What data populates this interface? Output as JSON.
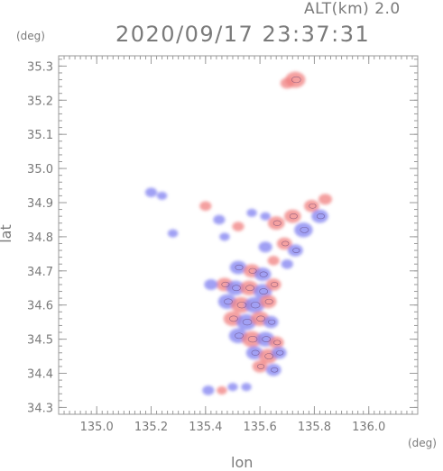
{
  "header": {
    "alt_label": "ALT(km) 2.0",
    "timestamp": "2020/09/17 23:37:31"
  },
  "chart_data": {
    "type": "heatmap",
    "title": "2020/09/17 23:37:31",
    "xlabel": "lon",
    "ylabel": "lat",
    "xunit": "(deg)",
    "yunit": "(deg)",
    "xlim": [
      134.86,
      136.18
    ],
    "ylim": [
      34.28,
      35.33
    ],
    "xticks": [
      135.0,
      135.2,
      135.4,
      135.6,
      135.8,
      136.0
    ],
    "xtick_labels": [
      "135.0",
      "135.2",
      "135.4",
      "135.6",
      "135.8",
      "136.0"
    ],
    "yticks": [
      34.3,
      34.4,
      34.5,
      34.6,
      34.7,
      34.8,
      34.9,
      35.0,
      35.1,
      35.2,
      35.3
    ],
    "ytick_labels": [
      "34.3",
      "34.4",
      "34.5",
      "34.6",
      "34.7",
      "34.8",
      "34.9",
      "35.0",
      "35.1",
      "35.2",
      "35.3"
    ],
    "grid": false,
    "colors": {
      "positive": "#f08080",
      "negative": "#8080f0",
      "outline": "#5a3a6a"
    },
    "patches": [
      {
        "lon": 135.73,
        "lat": 35.26,
        "sign": "positive",
        "size": 0.9
      },
      {
        "lon": 135.7,
        "lat": 35.25,
        "sign": "positive",
        "size": 0.5
      },
      {
        "lon": 135.2,
        "lat": 34.93,
        "sign": "negative",
        "size": 0.4
      },
      {
        "lon": 135.24,
        "lat": 34.92,
        "sign": "negative",
        "size": 0.3
      },
      {
        "lon": 135.4,
        "lat": 34.89,
        "sign": "positive",
        "size": 0.4
      },
      {
        "lon": 135.45,
        "lat": 34.85,
        "sign": "negative",
        "size": 0.4
      },
      {
        "lon": 135.52,
        "lat": 34.83,
        "sign": "positive",
        "size": 0.4
      },
      {
        "lon": 135.47,
        "lat": 34.8,
        "sign": "negative",
        "size": 0.3
      },
      {
        "lon": 135.57,
        "lat": 34.87,
        "sign": "negative",
        "size": 0.3
      },
      {
        "lon": 135.62,
        "lat": 34.86,
        "sign": "negative",
        "size": 0.3
      },
      {
        "lon": 135.28,
        "lat": 34.81,
        "sign": "negative",
        "size": 0.3
      },
      {
        "lon": 135.66,
        "lat": 34.84,
        "sign": "positive",
        "size": 0.7
      },
      {
        "lon": 135.72,
        "lat": 34.86,
        "sign": "positive",
        "size": 0.7
      },
      {
        "lon": 135.76,
        "lat": 34.82,
        "sign": "negative",
        "size": 0.8
      },
      {
        "lon": 135.79,
        "lat": 34.89,
        "sign": "positive",
        "size": 0.6
      },
      {
        "lon": 135.82,
        "lat": 34.86,
        "sign": "negative",
        "size": 0.7
      },
      {
        "lon": 135.84,
        "lat": 34.91,
        "sign": "positive",
        "size": 0.5
      },
      {
        "lon": 135.69,
        "lat": 34.78,
        "sign": "positive",
        "size": 0.6
      },
      {
        "lon": 135.73,
        "lat": 34.76,
        "sign": "negative",
        "size": 0.6
      },
      {
        "lon": 135.7,
        "lat": 34.72,
        "sign": "negative",
        "size": 0.4
      },
      {
        "lon": 135.62,
        "lat": 34.77,
        "sign": "negative",
        "size": 0.5
      },
      {
        "lon": 135.65,
        "lat": 34.73,
        "sign": "positive",
        "size": 0.4
      },
      {
        "lon": 135.52,
        "lat": 34.71,
        "sign": "negative",
        "size": 0.7
      },
      {
        "lon": 135.57,
        "lat": 34.7,
        "sign": "positive",
        "size": 0.7
      },
      {
        "lon": 135.61,
        "lat": 34.69,
        "sign": "negative",
        "size": 0.7
      },
      {
        "lon": 135.47,
        "lat": 34.66,
        "sign": "positive",
        "size": 0.7
      },
      {
        "lon": 135.51,
        "lat": 34.65,
        "sign": "negative",
        "size": 0.8
      },
      {
        "lon": 135.56,
        "lat": 34.65,
        "sign": "positive",
        "size": 0.8
      },
      {
        "lon": 135.61,
        "lat": 34.64,
        "sign": "negative",
        "size": 0.8
      },
      {
        "lon": 135.65,
        "lat": 34.66,
        "sign": "positive",
        "size": 0.6
      },
      {
        "lon": 135.42,
        "lat": 34.66,
        "sign": "negative",
        "size": 0.5
      },
      {
        "lon": 135.48,
        "lat": 34.61,
        "sign": "negative",
        "size": 0.8
      },
      {
        "lon": 135.53,
        "lat": 34.6,
        "sign": "positive",
        "size": 0.9
      },
      {
        "lon": 135.58,
        "lat": 34.6,
        "sign": "negative",
        "size": 0.9
      },
      {
        "lon": 135.63,
        "lat": 34.61,
        "sign": "positive",
        "size": 0.7
      },
      {
        "lon": 135.5,
        "lat": 34.56,
        "sign": "positive",
        "size": 0.8
      },
      {
        "lon": 135.55,
        "lat": 34.55,
        "sign": "negative",
        "size": 0.9
      },
      {
        "lon": 135.6,
        "lat": 34.56,
        "sign": "positive",
        "size": 0.8
      },
      {
        "lon": 135.64,
        "lat": 34.55,
        "sign": "negative",
        "size": 0.6
      },
      {
        "lon": 135.52,
        "lat": 34.51,
        "sign": "negative",
        "size": 0.8
      },
      {
        "lon": 135.57,
        "lat": 34.5,
        "sign": "positive",
        "size": 0.9
      },
      {
        "lon": 135.62,
        "lat": 34.5,
        "sign": "negative",
        "size": 0.8
      },
      {
        "lon": 135.66,
        "lat": 34.49,
        "sign": "positive",
        "size": 0.6
      },
      {
        "lon": 135.58,
        "lat": 34.46,
        "sign": "negative",
        "size": 0.7
      },
      {
        "lon": 135.63,
        "lat": 34.45,
        "sign": "positive",
        "size": 0.8
      },
      {
        "lon": 135.67,
        "lat": 34.46,
        "sign": "negative",
        "size": 0.6
      },
      {
        "lon": 135.6,
        "lat": 34.42,
        "sign": "positive",
        "size": 0.6
      },
      {
        "lon": 135.65,
        "lat": 34.41,
        "sign": "negative",
        "size": 0.6
      },
      {
        "lon": 135.41,
        "lat": 34.35,
        "sign": "negative",
        "size": 0.4
      },
      {
        "lon": 135.46,
        "lat": 34.35,
        "sign": "positive",
        "size": 0.3
      },
      {
        "lon": 135.5,
        "lat": 34.36,
        "sign": "negative",
        "size": 0.3
      },
      {
        "lon": 135.55,
        "lat": 34.36,
        "sign": "negative",
        "size": 0.3
      }
    ]
  }
}
